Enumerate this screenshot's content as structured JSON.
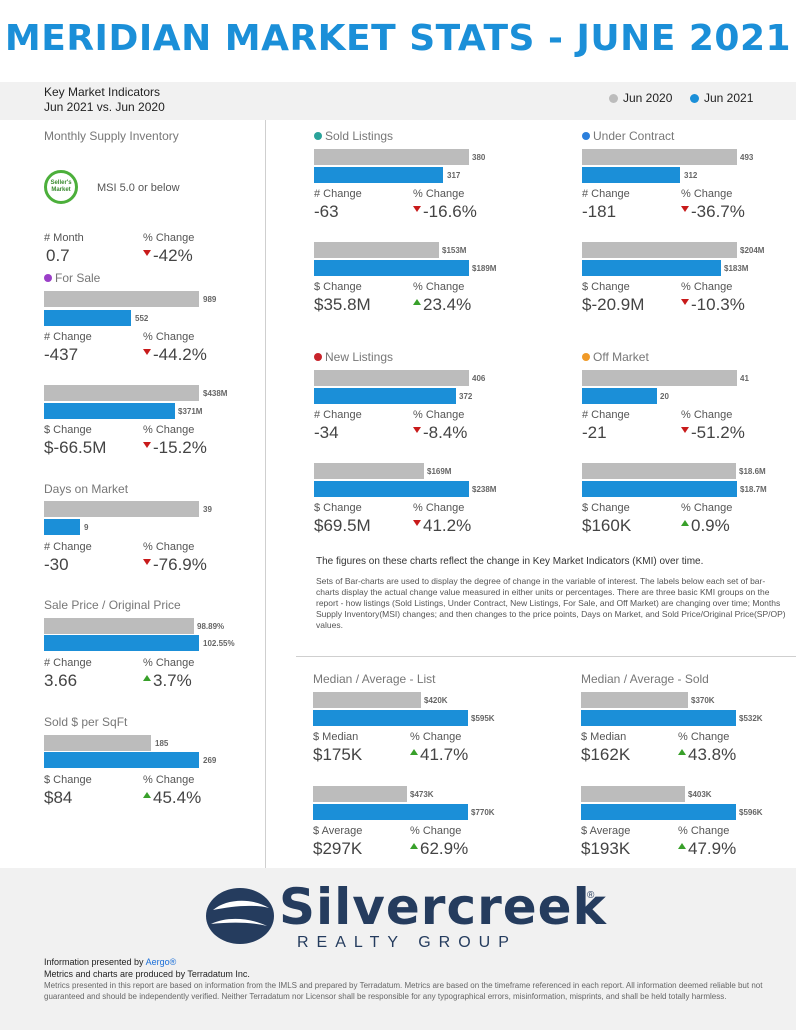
{
  "header": {
    "title": "MERIDIAN MARKET STATS - JUNE 2021",
    "kmi_title": "Key Market Indicators",
    "kmi_subtitle": "Jun 2021 vs. Jun 2020",
    "legend": [
      {
        "label": "Jun 2020",
        "color": "#bcbcbc"
      },
      {
        "label": "Jun 2021",
        "color": "#1b8fd8"
      }
    ]
  },
  "msi": {
    "title": "Monthly Supply Inventory",
    "badge_line1": "Seller's",
    "badge_line2": "Market",
    "badge_note": "MSI 5.0 or below",
    "month_label": "# Month",
    "month_value": "0.7",
    "pct_label": "% Change",
    "pct_value": "-42%"
  },
  "for_sale": {
    "title": "For Sale",
    "dot_color": "#9b3fc8",
    "count": {
      "jun2020": "989",
      "jun2021": "552",
      "change_label": "# Change",
      "change_value": "-437",
      "pct_label": "% Change",
      "pct_value": "-44.2%"
    },
    "dollar": {
      "jun2020": "$438M",
      "jun2021": "$371M",
      "change_label": "$ Change",
      "change_value": "$-66.5M",
      "pct_label": "% Change",
      "pct_value": "-15.2%"
    }
  },
  "days_on_market": {
    "title": "Days on Market",
    "jun2020": "39",
    "jun2021": "9",
    "change_label": "# Change",
    "change_value": "-30",
    "pct_label": "% Change",
    "pct_value": "-76.9%"
  },
  "sale_price_ratio": {
    "title": "Sale Price / Original Price",
    "jun2020": "98.89%",
    "jun2021": "102.55%",
    "change_label": "# Change",
    "change_value": "3.66",
    "pct_label": "% Change",
    "pct_value": "3.7%"
  },
  "sold_per_sqft": {
    "title": "Sold $ per SqFt",
    "jun2020": "185",
    "jun2021": "269",
    "change_label": "$ Change",
    "change_value": "$84",
    "pct_label": "% Change",
    "pct_value": "45.4%"
  },
  "sold_listings": {
    "title": "Sold Listings",
    "dot_color": "#2aa39a",
    "count": {
      "jun2020": "380",
      "jun2021": "317",
      "change_label": "# Change",
      "change_value": "-63",
      "pct_label": "% Change",
      "pct_value": "-16.6%"
    },
    "dollar": {
      "jun2020": "$153M",
      "jun2021": "$189M",
      "change_label": "$ Change",
      "change_value": "$35.8M",
      "pct_label": "% Change",
      "pct_value": "23.4%"
    }
  },
  "under_contract": {
    "title": "Under Contract",
    "dot_color": "#2b7fdc",
    "count": {
      "jun2020": "493",
      "jun2021": "312",
      "change_label": "# Change",
      "change_value": "-181",
      "pct_label": "% Change",
      "pct_value": "-36.7%"
    },
    "dollar": {
      "jun2020": "$204M",
      "jun2021": "$183M",
      "change_label": "$ Change",
      "change_value": "$-20.9M",
      "pct_label": "% Change",
      "pct_value": "-10.3%"
    }
  },
  "new_listings": {
    "title": "New Listings",
    "dot_color": "#c8242b",
    "count": {
      "jun2020": "406",
      "jun2021": "372",
      "change_label": "# Change",
      "change_value": "-34",
      "pct_label": "% Change",
      "pct_value": "-8.4%"
    },
    "dollar": {
      "jun2020": "$169M",
      "jun2021": "$238M",
      "change_label": "$ Change",
      "change_value": "$69.5M",
      "pct_label": "% Change",
      "pct_value": "41.2%"
    }
  },
  "off_market": {
    "title": "Off Market",
    "dot_color": "#f09a28",
    "count": {
      "jun2020": "41",
      "jun2021": "20",
      "change_label": "# Change",
      "change_value": "-21",
      "pct_label": "% Change",
      "pct_value": "-51.2%"
    },
    "dollar": {
      "jun2020": "$18.6M",
      "jun2021": "$18.7M",
      "change_label": "$ Change",
      "change_value": "$160K",
      "pct_label": "% Change",
      "pct_value": "0.9%"
    }
  },
  "notes": {
    "main": "The figures on these charts reflect the change in Key Market Indicators (KMI) over time.",
    "body": "Sets of Bar-charts are used to display the degree of change in the variable of interest. The labels below each set of bar-charts display the actual change value measured in either units or percentages. There are three basic KMI groups on the report - how listings (Sold Listings, Under Contract, New Listings, For Sale, and Off Market) are changing over time; Months Supply Inventory(MSI) changes; and then changes to the price points, Days on Market, and Sold Price/Original Price(SP/OP) values."
  },
  "median_avg_list": {
    "title": "Median / Average - List",
    "median": {
      "jun2020": "$420K",
      "jun2021": "$595K",
      "change_label": "$ Median",
      "change_value": "$175K",
      "pct_label": "% Change",
      "pct_value": "41.7%"
    },
    "average": {
      "jun2020": "$473K",
      "jun2021": "$770K",
      "change_label": "$ Average",
      "change_value": "$297K",
      "pct_label": "% Change",
      "pct_value": "62.9%"
    }
  },
  "median_avg_sold": {
    "title": "Median / Average - Sold",
    "median": {
      "jun2020": "$370K",
      "jun2021": "$532K",
      "change_label": "$ Median",
      "change_value": "$162K",
      "pct_label": "% Change",
      "pct_value": "43.8%"
    },
    "average": {
      "jun2020": "$403K",
      "jun2021": "$596K",
      "change_label": "$ Average",
      "change_value": "$193K",
      "pct_label": "% Change",
      "pct_value": "47.9%"
    }
  },
  "footer": {
    "logo_word": "Silvercreek",
    "logo_reg": "®",
    "logo_sub": "REALTY GROUP",
    "presented_prefix": "Information presented by ",
    "presented_link": "Aergo®",
    "produced": "Metrics and charts are produced by Terradatum Inc.",
    "disclaimer": "Metrics presented in this report are based on information from the IMLS and prepared by Terradatum. Metrics are based on the timeframe referenced in each report. All information deemed reliable but not guaranteed and should be independently verified. Neither Terradatum nor Licensor shall be responsible for any typographical errors, misinformation, misprints, and shall be held totally harmless."
  }
}
